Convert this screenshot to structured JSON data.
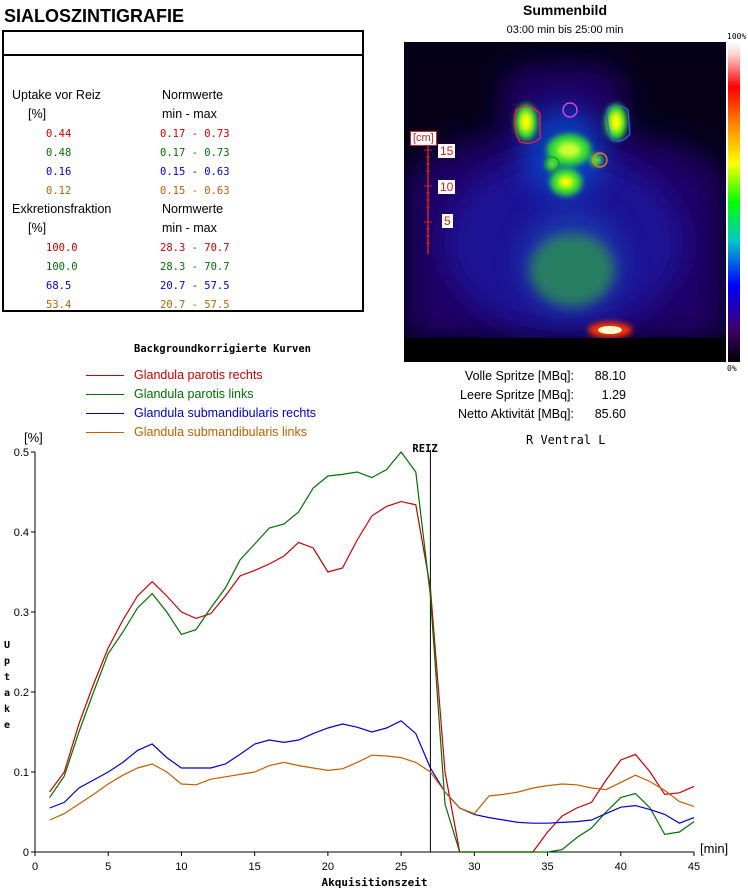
{
  "title": "SIALOSZINTIGRAFIE",
  "uptake_header": "Uptake vor Reiz",
  "uptake_unit": "[%]",
  "norm_header": "Normwerte",
  "norm_minmax": "min  -  max",
  "uptake_rows": [
    {
      "value": "0.44",
      "norm": "0.17 - 0.73",
      "color": "#cc0000"
    },
    {
      "value": "0.48",
      "norm": "0.17 - 0.73",
      "color": "#007000"
    },
    {
      "value": "0.16",
      "norm": "0.15 - 0.63",
      "color": "#0000cc"
    },
    {
      "value": "0.12",
      "norm": "0.15 - 0.63",
      "color": "#c06000"
    }
  ],
  "excretion_header": "Exkretionsfraktion",
  "excretion_unit": "[%]",
  "excretion_rows": [
    {
      "value": "100.0",
      "norm": "28.3 - 70.7",
      "color": "#cc0000"
    },
    {
      "value": "100.0",
      "norm": "28.3 - 70.7",
      "color": "#007000"
    },
    {
      "value": "68.5",
      "norm": "20.7 - 57.5",
      "color": "#0000cc"
    },
    {
      "value": "53.4",
      "norm": "20.7 - 57.5",
      "color": "#c06000"
    }
  ],
  "summenbild": {
    "title": "Summenbild",
    "subtitle": "03:00 min bis 25:00 min",
    "scale_unit": "[cm]",
    "scale_labels": [
      "15",
      "10",
      "5"
    ],
    "colorbar_top": "100%",
    "colorbar_bottom": "0%"
  },
  "activity": {
    "rows": [
      {
        "label": "Volle Spritze [MBq]:",
        "value": "88.10"
      },
      {
        "label": "Leere Spritze [MBq]:",
        "value": "1.29"
      },
      {
        "label": "Netto Aktivität [MBq]:",
        "value": "85.60"
      }
    ]
  },
  "chart_data": {
    "type": "line",
    "title": "Backgroundkorrigierte Kurven",
    "xlabel": "Akquisitionszeit",
    "ylabel": "Uptake",
    "x_unit": "[min]",
    "y_unit": "[%]",
    "view_label": "R Ventral L",
    "marker_label": "REIZ",
    "marker_x": 27,
    "xlim": [
      0,
      45
    ],
    "ylim": [
      0,
      0.5
    ],
    "x_ticks": [
      0,
      5,
      10,
      15,
      20,
      25,
      30,
      35,
      40,
      45
    ],
    "y_ticks": [
      0,
      0.1,
      0.2,
      0.3,
      0.4,
      0.5
    ],
    "x_tick_labels": [
      "0",
      "5",
      "10",
      "15",
      "20",
      "25",
      "30",
      "35",
      "40",
      "45"
    ],
    "y_tick_labels": [
      "0",
      "0.1",
      "0.2",
      "0.3",
      "0.4",
      "0.5"
    ],
    "grid": false,
    "legend": "top-left",
    "series": [
      {
        "name": "Glandula parotis rechts",
        "color": "#cc0000",
        "x": [
          1,
          2,
          3,
          4,
          5,
          6,
          7,
          8,
          9,
          10,
          11,
          12,
          13,
          14,
          15,
          16,
          17,
          18,
          19,
          20,
          21,
          22,
          23,
          24,
          25,
          26,
          27,
          28,
          29,
          30,
          31,
          32,
          33,
          34,
          35,
          36,
          37,
          38,
          39,
          40,
          41,
          42,
          43,
          44,
          45
        ],
        "y": [
          0.075,
          0.1,
          0.16,
          0.21,
          0.255,
          0.29,
          0.32,
          0.338,
          0.32,
          0.3,
          0.292,
          0.298,
          0.32,
          0.345,
          0.352,
          0.36,
          0.37,
          0.387,
          0.38,
          0.35,
          0.355,
          0.39,
          0.42,
          0.432,
          0.438,
          0.434,
          0.33,
          0.1,
          0,
          0,
          0,
          0,
          0,
          0,
          0.025,
          0.045,
          0.055,
          0.062,
          0.09,
          0.115,
          0.122,
          0.1,
          0.072,
          0.074,
          0.082
        ]
      },
      {
        "name": "Glandula parotis links",
        "color": "#007000",
        "x": [
          1,
          2,
          3,
          4,
          5,
          6,
          7,
          8,
          9,
          10,
          11,
          12,
          13,
          14,
          15,
          16,
          17,
          18,
          19,
          20,
          21,
          22,
          23,
          24,
          25,
          26,
          27,
          28,
          29,
          30,
          31,
          32,
          33,
          34,
          35,
          36,
          37,
          38,
          39,
          40,
          41,
          42,
          43,
          44,
          45
        ],
        "y": [
          0.068,
          0.095,
          0.15,
          0.2,
          0.248,
          0.275,
          0.305,
          0.323,
          0.3,
          0.272,
          0.278,
          0.305,
          0.33,
          0.365,
          0.385,
          0.405,
          0.41,
          0.425,
          0.455,
          0.47,
          0.472,
          0.475,
          0.468,
          0.478,
          0.5,
          0.475,
          0.32,
          0.06,
          0,
          0,
          0,
          0,
          0,
          0,
          0,
          0.003,
          0.018,
          0.03,
          0.05,
          0.068,
          0.073,
          0.055,
          0.022,
          0.025,
          0.038
        ]
      },
      {
        "name": "Glandula submandibularis rechts",
        "color": "#0000cc",
        "x": [
          1,
          2,
          3,
          4,
          5,
          6,
          7,
          8,
          9,
          10,
          11,
          12,
          13,
          14,
          15,
          16,
          17,
          18,
          19,
          20,
          21,
          22,
          23,
          24,
          25,
          26,
          27,
          28,
          29,
          30,
          31,
          32,
          33,
          34,
          35,
          36,
          37,
          38,
          39,
          40,
          41,
          42,
          43,
          44,
          45
        ],
        "y": [
          0.055,
          0.062,
          0.08,
          0.09,
          0.1,
          0.112,
          0.127,
          0.135,
          0.118,
          0.105,
          0.105,
          0.105,
          0.11,
          0.122,
          0.135,
          0.14,
          0.137,
          0.14,
          0.148,
          0.155,
          0.16,
          0.156,
          0.15,
          0.155,
          0.164,
          0.148,
          0.105,
          0.075,
          0.055,
          0.047,
          0.043,
          0.04,
          0.037,
          0.036,
          0.036,
          0.037,
          0.038,
          0.04,
          0.048,
          0.056,
          0.058,
          0.053,
          0.047,
          0.036,
          0.043
        ]
      },
      {
        "name": "Glandula submandibularis links",
        "color": "#c06000",
        "x": [
          1,
          2,
          3,
          4,
          5,
          6,
          7,
          8,
          9,
          10,
          11,
          12,
          13,
          14,
          15,
          16,
          17,
          18,
          19,
          20,
          21,
          22,
          23,
          24,
          25,
          26,
          27,
          28,
          29,
          30,
          31,
          32,
          33,
          34,
          35,
          36,
          37,
          38,
          39,
          40,
          41,
          42,
          43,
          44,
          45
        ],
        "y": [
          0.04,
          0.048,
          0.06,
          0.072,
          0.085,
          0.096,
          0.105,
          0.11,
          0.1,
          0.085,
          0.084,
          0.091,
          0.094,
          0.097,
          0.1,
          0.108,
          0.112,
          0.108,
          0.105,
          0.102,
          0.104,
          0.112,
          0.121,
          0.12,
          0.118,
          0.112,
          0.1,
          0.075,
          0.055,
          0.048,
          0.07,
          0.072,
          0.075,
          0.08,
          0.083,
          0.085,
          0.084,
          0.08,
          0.078,
          0.087,
          0.096,
          0.088,
          0.077,
          0.063,
          0.057
        ]
      }
    ]
  }
}
